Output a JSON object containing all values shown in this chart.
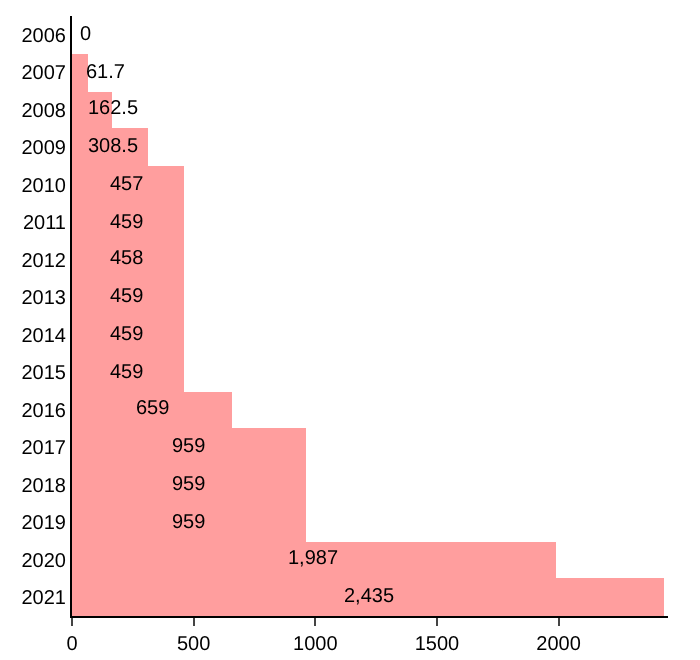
{
  "chart_data": {
    "type": "bar",
    "orientation": "horizontal",
    "categories": [
      "2006",
      "2007",
      "2008",
      "2009",
      "2010",
      "2011",
      "2012",
      "2013",
      "2014",
      "2015",
      "2016",
      "2017",
      "2018",
      "2019",
      "2020",
      "2021"
    ],
    "values": [
      0,
      61.7,
      162.5,
      308.5,
      457,
      459,
      458,
      459,
      459,
      459,
      659,
      959,
      959,
      959,
      1987,
      2435
    ],
    "value_labels": [
      "0",
      "61.7",
      "162.5",
      "308.5",
      "457",
      "459",
      "458",
      "459",
      "459",
      "459",
      "659",
      "959",
      "959",
      "959",
      "1,987",
      "2,435"
    ],
    "color": "#ff9e9e",
    "xlim": [
      0,
      2450
    ],
    "xticks": [
      0,
      500,
      1000,
      1500,
      2000
    ],
    "grid": false
  }
}
